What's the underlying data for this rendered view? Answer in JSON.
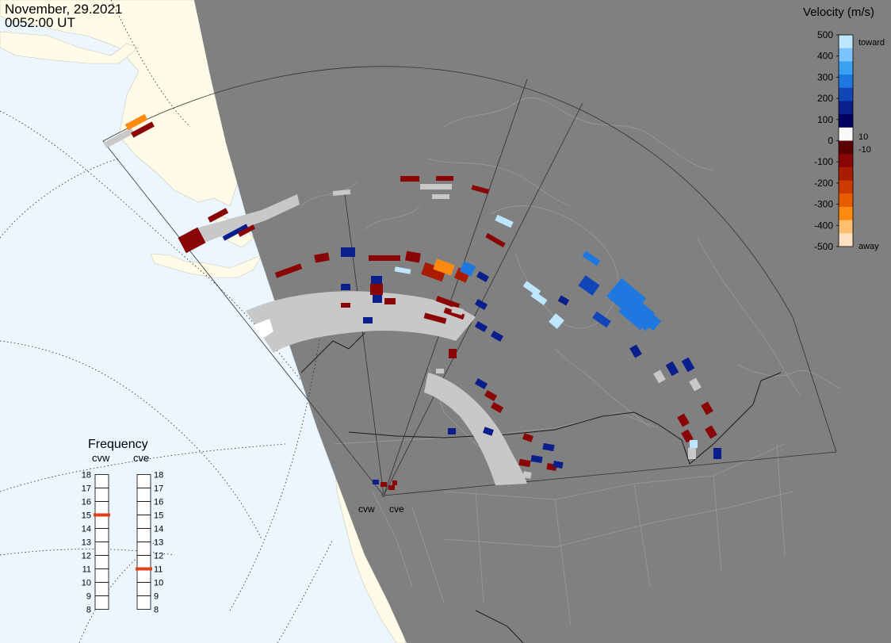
{
  "header": {
    "date": "November, 29.2021",
    "time": "0052:00 UT"
  },
  "colorbar": {
    "title": "Velocity (m/s)",
    "ticks": [
      "500",
      "400",
      "300",
      "200",
      "100",
      "0",
      "-100",
      "-200",
      "-300",
      "-400",
      "-500"
    ],
    "toward_label": "toward",
    "away_label": "away",
    "plus_label": "10",
    "minus_label": "-10",
    "colors": [
      "#bfe6ff",
      "#7cc4ff",
      "#3aa0f0",
      "#1e78e0",
      "#1246b8",
      "#0a1e8c",
      "#000060",
      "#fafafa",
      "#5a0000",
      "#8a0505",
      "#aa1c00",
      "#cc3a00",
      "#e85c00",
      "#ff8a10",
      "#ffbf70",
      "#ffe0c0"
    ]
  },
  "frequency": {
    "title": "Frequency",
    "radars": [
      {
        "code": "cvw",
        "value_mhz": 15
      },
      {
        "code": "cve",
        "value_mhz": 11
      }
    ],
    "levels": [
      "18",
      "17",
      "16",
      "15",
      "14",
      "13",
      "12",
      "11",
      "10",
      "9",
      "8"
    ],
    "marker_color": "#e0401a"
  },
  "map": {
    "ocean_color": "#ebf6ff",
    "land_color": "#fffbe8",
    "night_color": "#808080",
    "radar_labels": [
      "cvw",
      "cve"
    ]
  }
}
